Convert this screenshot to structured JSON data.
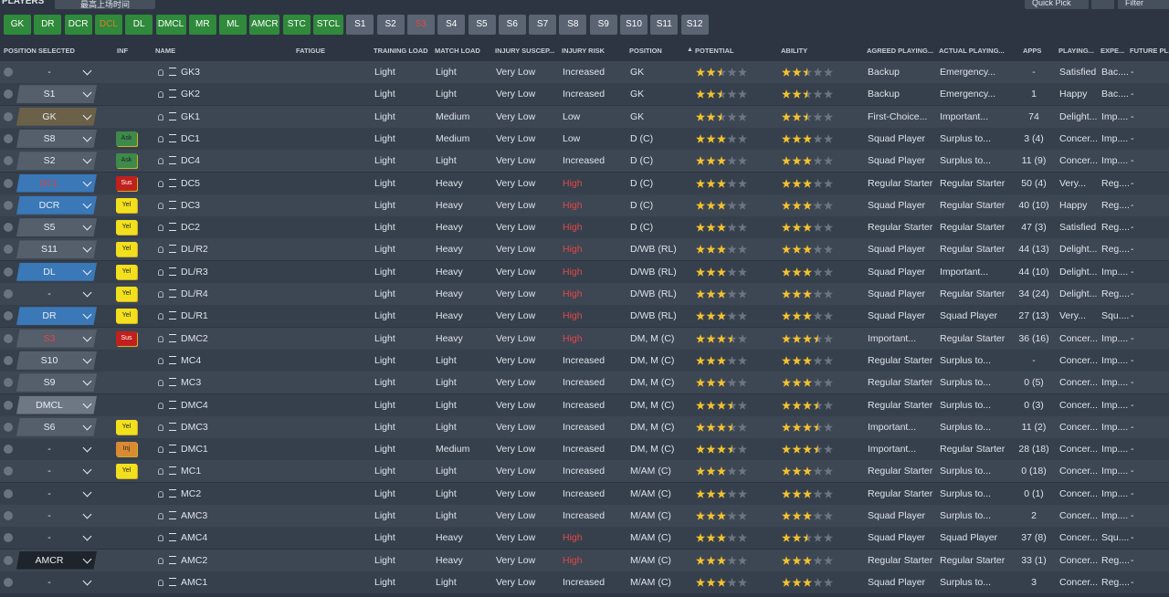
{
  "header": {
    "title": "PLAYERS",
    "view": "最高上场时间",
    "quick_pick": "Quick Pick",
    "filter": "Filter"
  },
  "position_buttons": [
    {
      "text": "GK",
      "bg": "#2f8a3b"
    },
    {
      "text": "DR",
      "bg": "#2f8a3b"
    },
    {
      "text": "DCR",
      "bg": "#2f8a3b"
    },
    {
      "text": "DCL",
      "bg": "#2f8a3b",
      "color": "#e0782e"
    },
    {
      "text": "DL",
      "bg": "#2f8a3b"
    },
    {
      "text": "DMCL",
      "bg": "#2f8a3b"
    },
    {
      "text": "MR",
      "bg": "#2f8a3b"
    },
    {
      "text": "ML",
      "bg": "#2f8a3b"
    },
    {
      "text": "AMCR",
      "bg": "#2f8a3b"
    },
    {
      "text": "STC",
      "bg": "#2f8a3b"
    },
    {
      "text": "STCL",
      "bg": "#2f8a3b"
    },
    {
      "text": "S1",
      "bg": "#5a6472"
    },
    {
      "text": "S2",
      "bg": "#5a6472"
    },
    {
      "text": "S3",
      "bg": "#5a6472",
      "color": "#e04848"
    },
    {
      "text": "S4",
      "bg": "#5a6472"
    },
    {
      "text": "S5",
      "bg": "#5a6472"
    },
    {
      "text": "S6",
      "bg": "#5a6472"
    },
    {
      "text": "S7",
      "bg": "#5a6472"
    },
    {
      "text": "S8",
      "bg": "#5a6472"
    },
    {
      "text": "S9",
      "bg": "#5a6472"
    },
    {
      "text": "S10",
      "bg": "#5a6472"
    },
    {
      "text": "S11",
      "bg": "#5a6472"
    },
    {
      "text": "S12",
      "bg": "#5a6472"
    }
  ],
  "table": {
    "columns": [
      "POSITION SELECTED",
      "INF",
      "NAME",
      "FATIGUE",
      "TRAINING LOAD",
      "MATCH LOAD",
      "INJURY SUSCEP...",
      "INJURY RISK",
      "POSITION",
      "POTENTIAL",
      "ABILITY",
      "AGREED PLAYING...",
      "ACTUAL PLAYING...",
      "APPS",
      "PLAYING...",
      "EXPE...",
      "FUTURE PL..."
    ],
    "rows": [
      [
        "-",
        null,
        "GK3",
        null,
        "Light",
        "Light",
        "Very Low",
        "Increased",
        "GK",
        2.5,
        2.5,
        "Backup",
        "Emergency...",
        "-",
        "Satisfied",
        "Bac....",
        "-"
      ],
      [
        {
          "text": "S1",
          "bg": "#555e6b"
        },
        null,
        "GK2",
        null,
        "Light",
        "Light",
        "Very Low",
        "Increased",
        "GK",
        2.5,
        2.5,
        "Backup",
        "Emergency...",
        "1",
        "Happy",
        "Bac....",
        "-"
      ],
      [
        {
          "text": "GK",
          "bg": "#6b6048"
        },
        null,
        "GK1",
        null,
        "Light",
        "Medium",
        "Very Low",
        "Low",
        "GK",
        2.5,
        2.5,
        "First-Choice...",
        "Important...",
        "74",
        "Delight...",
        "Imp....",
        "-"
      ],
      [
        {
          "text": "S8",
          "bg": "#555e6b"
        },
        {
          "text": "Ask",
          "bg": "#3d8a4a"
        },
        "DC1",
        null,
        "Light",
        "Medium",
        "Very Low",
        "Low",
        "D (C)",
        3,
        3,
        "Squad Player",
        "Surplus to...",
        "3 (4)",
        "Concer...",
        "Imp....",
        "-"
      ],
      [
        {
          "text": "S2",
          "bg": "#555e6b"
        },
        {
          "text": "Ask",
          "bg": "#3d8a4a"
        },
        "DC4",
        null,
        "Light",
        "Light",
        "Very Low",
        "Increased",
        "D (C)",
        3,
        3,
        "Squad Player",
        "Surplus to...",
        "11 (9)",
        "Concer...",
        "Imp....",
        "-"
      ],
      [
        {
          "text": "DCL",
          "bg": "#3a78b8",
          "color": "#d9463e"
        },
        {
          "text": "Sus",
          "bg": "#c0201e",
          "color": "#ffffff"
        },
        "DC5",
        null,
        "Light",
        "Heavy",
        "Very Low",
        {
          "text": "High",
          "color": "#e04848"
        },
        "D (C)",
        3,
        3,
        "Regular Starter",
        "Regular Starter",
        "50 (4)",
        "Very...",
        "Reg....",
        "-"
      ],
      [
        {
          "text": "DCR",
          "bg": "#3a78b8"
        },
        {
          "text": "Yel",
          "bg": "#f2e01e"
        },
        "DC3",
        null,
        "Light",
        "Heavy",
        "Very Low",
        {
          "text": "High",
          "color": "#e04848"
        },
        "D (C)",
        3,
        3,
        "Squad Player",
        "Regular Starter",
        "40 (10)",
        "Happy",
        "Reg....",
        "-"
      ],
      [
        {
          "text": "S5",
          "bg": "#555e6b"
        },
        {
          "text": "Yel",
          "bg": "#f2e01e"
        },
        "DC2",
        null,
        "Light",
        "Heavy",
        "Very Low",
        {
          "text": "High",
          "color": "#e04848"
        },
        "D (C)",
        3,
        3,
        "Regular Starter",
        "Regular Starter",
        "47 (3)",
        "Satisfied",
        "Reg....",
        "-"
      ],
      [
        {
          "text": "S11",
          "bg": "#555e6b"
        },
        {
          "text": "Yel",
          "bg": "#f2e01e"
        },
        "DL/R2",
        null,
        "Light",
        "Heavy",
        "Very Low",
        {
          "text": "High",
          "color": "#e04848"
        },
        "D/WB (RL)",
        3,
        3,
        "Squad Player",
        "Regular Starter",
        "44 (13)",
        "Delight...",
        "Reg....",
        "-"
      ],
      [
        {
          "text": "DL",
          "bg": "#3a78b8"
        },
        {
          "text": "Yel",
          "bg": "#f2e01e"
        },
        "DL/R3",
        null,
        "Light",
        "Heavy",
        "Very Low",
        {
          "text": "High",
          "color": "#e04848"
        },
        "D/WB (RL)",
        3,
        3,
        "Squad Player",
        "Important...",
        "44 (10)",
        "Delight...",
        "Imp....",
        "-"
      ],
      [
        "-",
        {
          "text": "Yel",
          "bg": "#f2e01e"
        },
        "DL/R4",
        null,
        "Light",
        "Heavy",
        "Very Low",
        {
          "text": "High",
          "color": "#e04848"
        },
        "D/WB (RL)",
        3,
        3,
        "Squad Player",
        "Regular Starter",
        "34 (24)",
        "Delight...",
        "Reg....",
        "-"
      ],
      [
        {
          "text": "DR",
          "bg": "#3a78b8"
        },
        {
          "text": "Yel",
          "bg": "#f2e01e"
        },
        "DL/R1",
        null,
        "Light",
        "Heavy",
        "Very Low",
        {
          "text": "High",
          "color": "#e04848"
        },
        "D/WB (RL)",
        3,
        3,
        "Squad Player",
        "Squad Player",
        "27 (13)",
        "Very...",
        "Squ....",
        "-"
      ],
      [
        {
          "text": "S3",
          "bg": "#555e6b",
          "color": "#e04848"
        },
        {
          "text": "Sus",
          "bg": "#c0201e",
          "color": "#ffffff"
        },
        "DMC2",
        null,
        "Light",
        "Heavy",
        "Very Low",
        {
          "text": "High",
          "color": "#e04848"
        },
        "DM, M (C)",
        3.5,
        3.5,
        "Important...",
        "Regular Starter",
        "36 (16)",
        "Concer...",
        "Imp....",
        "-"
      ],
      [
        {
          "text": "S10",
          "bg": "#555e6b"
        },
        null,
        "MC4",
        null,
        "Light",
        "Light",
        "Very Low",
        "Increased",
        "DM, M (C)",
        3,
        3,
        "Regular Starter",
        "Surplus to...",
        "-",
        "Concer...",
        "Imp....",
        "-"
      ],
      [
        {
          "text": "S9",
          "bg": "#555e6b"
        },
        null,
        "MC3",
        null,
        "Light",
        "Light",
        "Very Low",
        "Increased",
        "DM, M (C)",
        3,
        3,
        "Regular Starter",
        "Surplus to...",
        "0 (5)",
        "Concer...",
        "Imp....",
        "-"
      ],
      [
        {
          "text": "DMCL",
          "bg": "#6e7784"
        },
        null,
        "DMC4",
        null,
        "Light",
        "Light",
        "Very Low",
        "Increased",
        "DM, M (C)",
        3.5,
        3.5,
        "Regular Starter",
        "Surplus to...",
        "0 (3)",
        "Concer...",
        "Imp....",
        "-"
      ],
      [
        {
          "text": "S6",
          "bg": "#555e6b"
        },
        {
          "text": "Yel",
          "bg": "#f2e01e"
        },
        "DMC3",
        null,
        "Light",
        "Light",
        "Very Low",
        "Increased",
        "DM, M (C)",
        3.5,
        3.5,
        "Important...",
        "Surplus to...",
        "11 (2)",
        "Concer...",
        "Imp....",
        "-"
      ],
      [
        "-",
        {
          "text": "Inj",
          "bg": "#d98a32"
        },
        "DMC1",
        null,
        "Light",
        "Medium",
        "Very Low",
        "Increased",
        "DM, M (C)",
        3.5,
        3.5,
        "Important...",
        "Regular Starter",
        "28 (18)",
        "Concer...",
        "Imp....",
        "-"
      ],
      [
        "-",
        {
          "text": "Yel",
          "bg": "#f2e01e"
        },
        "MC1",
        null,
        "Light",
        "Light",
        "Very Low",
        "Increased",
        "M/AM (C)",
        3,
        3,
        "Regular Starter",
        "Surplus to...",
        "0 (18)",
        "Concer...",
        "Imp....",
        "-"
      ],
      [
        "-",
        null,
        "MC2",
        null,
        "Light",
        "Light",
        "Very Low",
        "Increased",
        "M/AM (C)",
        3,
        3,
        "Regular Starter",
        "Surplus to...",
        "0 (1)",
        "Concer...",
        "Imp....",
        "-"
      ],
      [
        "-",
        null,
        "AMC3",
        null,
        "Light",
        "Light",
        "Very Low",
        "Increased",
        "M/AM (C)",
        3,
        3,
        "Squad Player",
        "Surplus to...",
        "2",
        "Concer...",
        "Imp....",
        "-"
      ],
      [
        "-",
        null,
        "AMC4",
        null,
        "Light",
        "Heavy",
        "Very Low",
        {
          "text": "High",
          "color": "#e04848"
        },
        "M/AM (C)",
        3,
        2.5,
        "Squad Player",
        "Squad Player",
        "37 (8)",
        "Concer...",
        "Squ....",
        "-"
      ],
      [
        {
          "text": "AMCR",
          "bg": "#1e242c"
        },
        null,
        "AMC2",
        null,
        "Light",
        "Heavy",
        "Very Low",
        {
          "text": "High",
          "color": "#e04848"
        },
        "M/AM (C)",
        3,
        3,
        "Regular Starter",
        "Regular Starter",
        "33 (1)",
        "Concer...",
        "Reg....",
        "-"
      ],
      [
        "-",
        null,
        "AMC1",
        null,
        "Light",
        "Light",
        "Very Low",
        "Increased",
        "M/AM (C)",
        3,
        3,
        "Squad Player",
        "Surplus to...",
        "3",
        "Concer...",
        "Reg....",
        "-"
      ]
    ]
  }
}
